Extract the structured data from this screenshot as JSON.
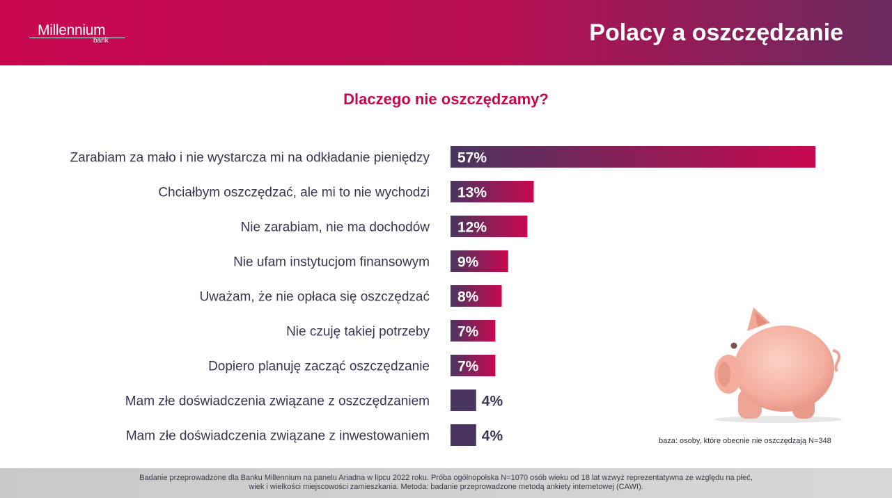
{
  "header": {
    "logo_name": "Millennium",
    "logo_sub": "bank",
    "title": "Polacy a oszczędzanie"
  },
  "colors": {
    "brand": "#c8074f",
    "bar_dark": "#4a3560",
    "bar_accent": "#c8074f",
    "text": "#3b3350"
  },
  "chart_data": {
    "type": "bar",
    "orientation": "horizontal",
    "title": "Dlaczego nie oszczędzamy?",
    "categories": [
      "Zarabiam za mało i nie wystarcza mi na odkładanie pieniędzy",
      "Chciałbym oszczędzać, ale mi to nie wychodzi",
      "Nie zarabiam, nie ma dochodów",
      "Nie ufam instytucjom finansowym",
      "Uważam, że nie opłaca się oszczędzać",
      "Nie czuję takiej potrzeby",
      "Dopiero planuję zacząć oszczędzanie",
      "Mam złe doświadczenia związane z oszczędzaniem",
      "Mam złe doświadczenia związane z inwestowaniem"
    ],
    "values": [
      57,
      13,
      12,
      9,
      8,
      7,
      7,
      4,
      4
    ],
    "value_labels": [
      "57%",
      "13%",
      "12%",
      "9%",
      "8%",
      "7%",
      "7%",
      "4%",
      "4%"
    ],
    "unit": "%",
    "grid": false
  },
  "base_note": "baza: osoby, które obecnie nie oszczędzają N=348",
  "footer": {
    "line1": "Badanie przeprowadzone dla Banku Millennium na panelu Ariadna w lipcu 2022 roku. Próba ogólnopolska N=1070 osób wieku od 18 lat wzwyż reprezentatywna ze względu na płeć,",
    "line2": "wiek i wielkości miejscowości zamieszkania. Metoda: badanie przeprowadzone metodą ankiety internetowej (CAWI)."
  },
  "illustration": "piggy-bank-icon"
}
